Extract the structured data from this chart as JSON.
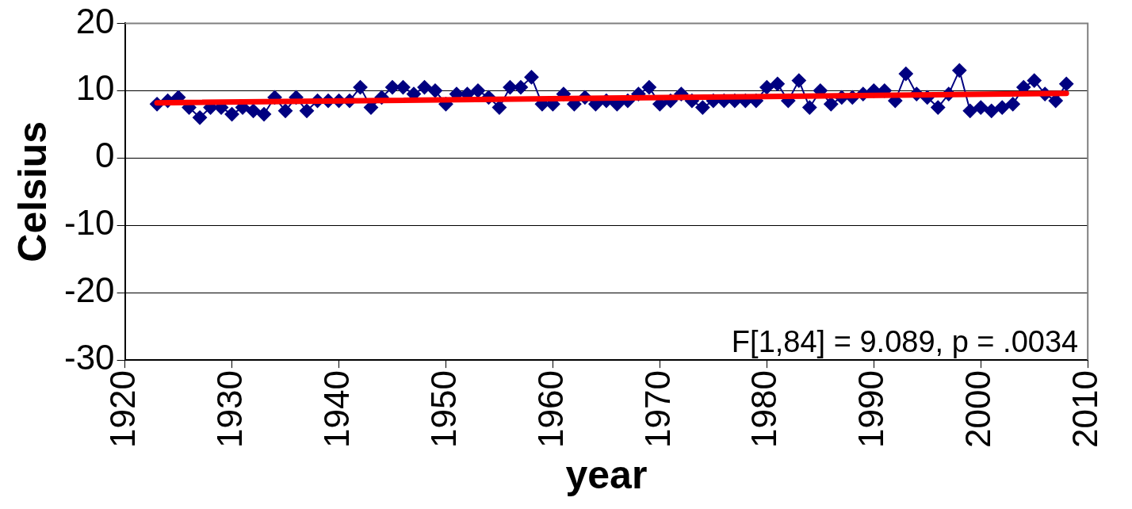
{
  "chart_data": {
    "type": "line",
    "xlabel": "year",
    "ylabel": "Celsius",
    "xlim": [
      1920,
      2010
    ],
    "xticks": [
      1920,
      1930,
      1940,
      1950,
      1960,
      1970,
      1980,
      1990,
      2000,
      2010
    ],
    "ylim": [
      -30,
      20
    ],
    "yticks": [
      -30,
      -20,
      -10,
      0,
      10,
      20
    ],
    "grid": "y",
    "legend": false,
    "marker": "diamond",
    "line_style": "solid",
    "x": [
      1923,
      1924,
      1925,
      1926,
      1927,
      1928,
      1929,
      1930,
      1931,
      1932,
      1933,
      1934,
      1935,
      1936,
      1937,
      1938,
      1939,
      1940,
      1941,
      1942,
      1943,
      1944,
      1945,
      1946,
      1947,
      1948,
      1949,
      1950,
      1951,
      1952,
      1953,
      1954,
      1955,
      1956,
      1957,
      1958,
      1959,
      1960,
      1961,
      1962,
      1963,
      1964,
      1965,
      1966,
      1967,
      1968,
      1969,
      1970,
      1971,
      1972,
      1973,
      1974,
      1975,
      1976,
      1977,
      1978,
      1979,
      1980,
      1981,
      1982,
      1983,
      1984,
      1985,
      1986,
      1987,
      1988,
      1989,
      1990,
      1991,
      1992,
      1993,
      1994,
      1995,
      1996,
      1997,
      1998,
      1999,
      2000,
      2001,
      2002,
      2003,
      2004,
      2005,
      2006,
      2007,
      2008
    ],
    "series": [
      {
        "color": "#000080",
        "values": [
          8,
          8.5,
          9,
          7.5,
          6,
          7.5,
          7.5,
          6.5,
          7.5,
          7,
          6.5,
          9,
          7,
          9,
          7,
          8.5,
          8.5,
          8.5,
          8.5,
          10.5,
          7.5,
          9,
          10.5,
          10.5,
          9.5,
          10.5,
          10,
          8,
          9.5,
          9.5,
          10,
          9,
          7.5,
          10.5,
          10.5,
          12,
          8,
          8,
          9.5,
          8,
          9,
          8,
          8.5,
          8,
          8.5,
          9.5,
          10.5,
          8,
          8.5,
          9.5,
          8.5,
          7.5,
          8.5,
          8.5,
          8.5,
          8.5,
          8.5,
          10.5,
          11,
          8.5,
          11.5,
          7.5,
          10,
          8,
          9,
          9,
          9.5,
          10,
          10,
          8.5,
          12.5,
          9.5,
          9,
          7.5,
          9.5,
          13,
          7,
          7.5,
          7,
          7.5,
          8,
          10.5,
          11.5,
          9.5,
          8.5,
          11
        ]
      },
      {
        "type": "line",
        "color": "#ff0000",
        "marker": "none",
        "x": [
          1923,
          2008
        ],
        "values": [
          8.2,
          9.6
        ]
      }
    ],
    "annotations": [
      "F[1,84] = 9.089, p = .0034"
    ]
  }
}
